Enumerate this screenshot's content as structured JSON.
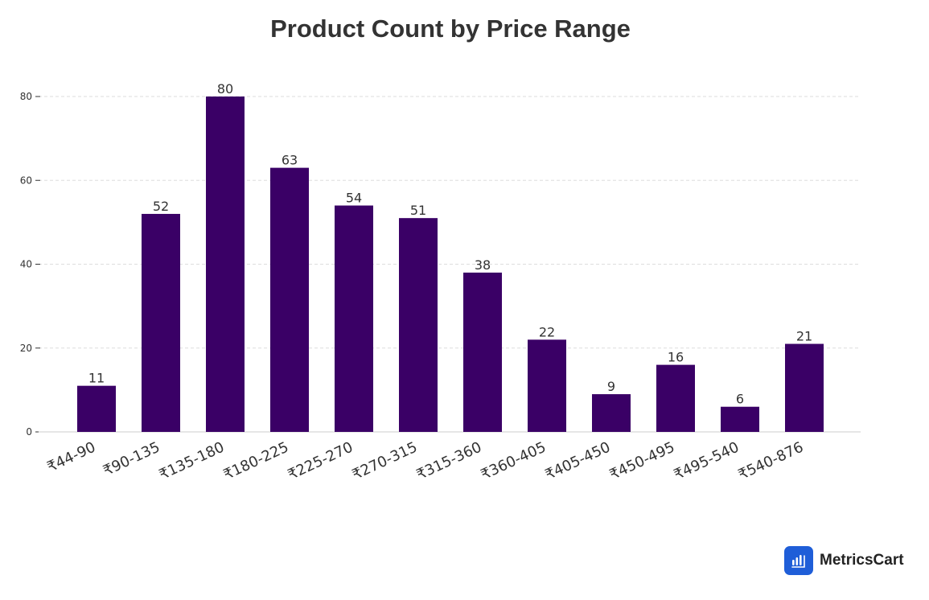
{
  "chart_data": {
    "type": "bar",
    "title": "Product Count by Price Range",
    "xlabel": "",
    "ylabel": "",
    "categories": [
      "₹44-90",
      "₹90-135",
      "₹135-180",
      "₹180-225",
      "₹225-270",
      "₹270-315",
      "₹315-360",
      "₹360-405",
      "₹405-450",
      "₹450-495",
      "₹495-540",
      "₹540-876"
    ],
    "values": [
      11,
      52,
      80,
      63,
      54,
      51,
      38,
      22,
      9,
      16,
      6,
      21
    ],
    "yticks": [
      0,
      20,
      40,
      60,
      80
    ],
    "ylim": [
      0,
      80
    ],
    "grid": true,
    "bar_color": "#3a0066",
    "data_labels": true
  },
  "branding": {
    "logo_text": "MetricsCart",
    "logo_color": "#1f5ed8"
  }
}
